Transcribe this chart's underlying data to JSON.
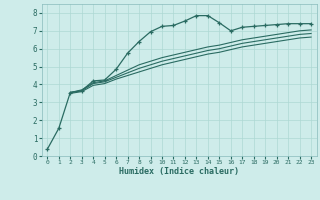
{
  "xlabel": "Humidex (Indice chaleur)",
  "bg_color": "#ceecea",
  "grid_color": "#aed8d4",
  "line_color": "#2a6b62",
  "xlim": [
    -0.5,
    23.5
  ],
  "ylim": [
    0,
    8.5
  ],
  "xticks": [
    0,
    1,
    2,
    3,
    4,
    5,
    6,
    7,
    8,
    9,
    10,
    11,
    12,
    13,
    14,
    15,
    16,
    17,
    18,
    19,
    20,
    21,
    22,
    23
  ],
  "yticks": [
    0,
    1,
    2,
    3,
    4,
    5,
    6,
    7,
    8
  ],
  "line1_x": [
    0,
    1,
    2,
    3,
    4,
    5,
    6,
    7,
    8,
    9,
    10,
    11,
    12,
    13,
    14,
    15,
    16,
    17,
    18,
    19,
    20,
    21,
    22,
    23
  ],
  "line1_y": [
    0.38,
    1.55,
    3.55,
    3.65,
    4.2,
    4.25,
    4.85,
    5.75,
    6.4,
    6.95,
    7.25,
    7.3,
    7.55,
    7.85,
    7.85,
    7.45,
    7.0,
    7.2,
    7.25,
    7.3,
    7.35,
    7.4,
    7.4,
    7.4
  ],
  "line2_x": [
    2,
    3,
    4,
    5,
    6,
    7,
    8,
    9,
    10,
    11,
    12,
    13,
    14,
    15,
    16,
    17,
    18,
    19,
    20,
    21,
    22,
    23
  ],
  "line2_y": [
    3.55,
    3.7,
    4.1,
    4.2,
    4.5,
    4.8,
    5.1,
    5.3,
    5.5,
    5.65,
    5.8,
    5.95,
    6.1,
    6.2,
    6.35,
    6.5,
    6.6,
    6.7,
    6.8,
    6.9,
    7.0,
    7.05
  ],
  "line3_x": [
    2,
    3,
    4,
    5,
    6,
    7,
    8,
    9,
    10,
    11,
    12,
    13,
    14,
    15,
    16,
    17,
    18,
    19,
    20,
    21,
    22,
    23
  ],
  "line3_y": [
    3.55,
    3.65,
    4.05,
    4.15,
    4.4,
    4.65,
    4.9,
    5.1,
    5.3,
    5.45,
    5.6,
    5.75,
    5.9,
    6.0,
    6.15,
    6.3,
    6.4,
    6.5,
    6.6,
    6.7,
    6.8,
    6.85
  ],
  "line4_x": [
    2,
    3,
    4,
    5,
    6,
    7,
    8,
    9,
    10,
    11,
    12,
    13,
    14,
    15,
    16,
    17,
    18,
    19,
    20,
    21,
    22,
    23
  ],
  "line4_y": [
    3.5,
    3.6,
    3.95,
    4.05,
    4.3,
    4.5,
    4.7,
    4.9,
    5.1,
    5.25,
    5.4,
    5.55,
    5.7,
    5.8,
    5.95,
    6.1,
    6.2,
    6.3,
    6.4,
    6.5,
    6.6,
    6.65
  ]
}
